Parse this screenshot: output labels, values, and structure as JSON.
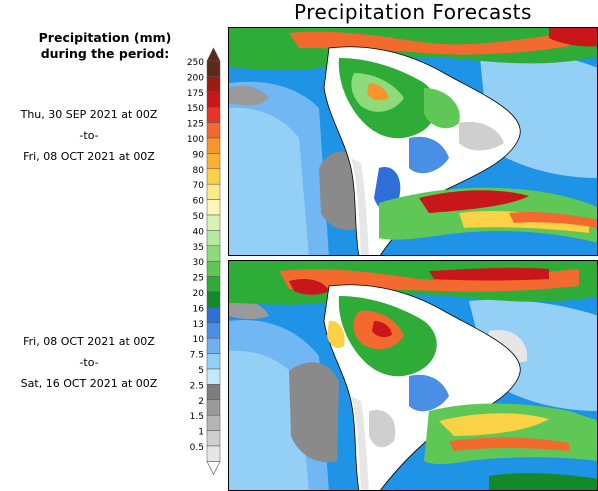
{
  "title": "Precipitation Forecasts",
  "legend": {
    "heading_line1": "Precipitation (mm)",
    "heading_line2": "during the period:",
    "levels": [
      "250",
      "200",
      "175",
      "150",
      "125",
      "100",
      "90",
      "80",
      "70",
      "60",
      "50",
      "40",
      "35",
      "30",
      "25",
      "20",
      "16",
      "13",
      "10",
      "7.5",
      "5",
      "2.5",
      "2",
      "1.5",
      "1",
      "0.5"
    ],
    "colors": [
      "#5c2a19",
      "#9b1c12",
      "#c8161b",
      "#e8332b",
      "#f26a2d",
      "#f8962d",
      "#fbb230",
      "#fbd145",
      "#fbe98a",
      "#fdf7b9",
      "#d8f2b3",
      "#b4eaa0",
      "#8ddb7b",
      "#5fc756",
      "#2fab37",
      "#14892b",
      "#2d6fd6",
      "#4a8ee6",
      "#6eb0f2",
      "#94cff6",
      "#c2e8fb",
      "#7c7c7c",
      "#9a9a9a",
      "#b5b5b5",
      "#cfcfcf",
      "#e6e6e6"
    ]
  },
  "periods": [
    {
      "start": "Thu, 30 SEP 2021 at 00Z",
      "sep": "-to-",
      "end": "Fri, 08 OCT 2021 at 00Z"
    },
    {
      "start": "Fri, 08 OCT 2021 at 00Z",
      "sep": "-to-",
      "end": "Sat, 16 OCT 2021 at 00Z"
    }
  ]
}
